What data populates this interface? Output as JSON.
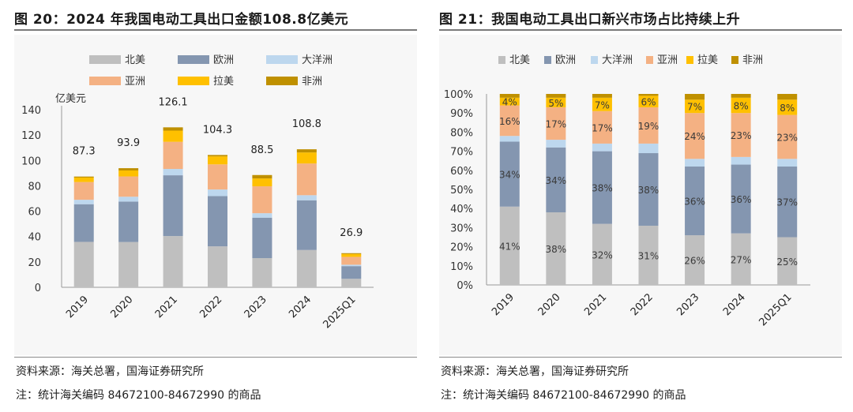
{
  "left": {
    "title": "图 20：2024 年我国电动工具出口金额108.8亿美元",
    "source": "资料来源：海关总署，国海证券研究所",
    "note": "注：统计海关编码 84672100-84672990 的商品"
  },
  "right": {
    "title": "图 21：我国电动工具出口新兴市场占比持续上升",
    "source": "资料来源：海关总署，国海证券研究所",
    "note": "注：统计海关编码 84672100-84672990 的商品"
  },
  "colors": {
    "北美": "#bfbfbf",
    "欧洲": "#8496b0",
    "大洋洲": "#bdd7ee",
    "亚洲": "#f4b183",
    "拉美": "#ffc000",
    "非洲": "#bf9000"
  },
  "chart_data": [
    {
      "type": "bar",
      "stacked": true,
      "ylabel": "亿美元",
      "ylim": [
        0,
        140
      ],
      "yticks": [
        0,
        20,
        40,
        60,
        80,
        100,
        120,
        140
      ],
      "categories": [
        "2019",
        "2020",
        "2021",
        "2022",
        "2023",
        "2024",
        "2025Q1"
      ],
      "totals": [
        87.3,
        93.9,
        126.1,
        104.3,
        88.5,
        108.8,
        26.9
      ],
      "legend": [
        "北美",
        "欧洲",
        "大洋洲",
        "亚洲",
        "拉美",
        "非洲"
      ],
      "legend_position": "top",
      "series": [
        {
          "name": "北美",
          "values": [
            35.8,
            35.7,
            40.4,
            32.3,
            23.0,
            29.4,
            6.7
          ]
        },
        {
          "name": "欧洲",
          "values": [
            29.7,
            31.9,
            47.9,
            39.6,
            31.9,
            39.2,
            10.0
          ]
        },
        {
          "name": "大洋洲",
          "values": [
            3.5,
            3.8,
            5.0,
            5.2,
            3.5,
            4.0,
            1.1
          ]
        },
        {
          "name": "亚洲",
          "values": [
            14.0,
            16.0,
            21.4,
            19.8,
            21.2,
            25.0,
            6.2
          ]
        },
        {
          "name": "拉美",
          "values": [
            3.5,
            4.7,
            8.8,
            6.3,
            6.2,
            8.7,
            2.2
          ]
        },
        {
          "name": "非洲",
          "values": [
            0.8,
            1.8,
            2.6,
            1.1,
            2.7,
            2.5,
            0.7
          ]
        }
      ]
    },
    {
      "type": "bar",
      "stacked": true,
      "percent": true,
      "ylim": [
        0,
        100
      ],
      "yticks": [
        "0%",
        "10%",
        "20%",
        "30%",
        "40%",
        "50%",
        "60%",
        "70%",
        "80%",
        "90%",
        "100%"
      ],
      "categories": [
        "2019",
        "2020",
        "2021",
        "2022",
        "2023",
        "2024",
        "2025Q1"
      ],
      "legend": [
        "北美",
        "欧洲",
        "大洋洲",
        "亚洲",
        "拉美",
        "非洲"
      ],
      "legend_position": "top",
      "series": [
        {
          "name": "北美",
          "values": [
            41,
            38,
            32,
            31,
            26,
            27,
            25
          ],
          "labels": [
            "41%",
            "38%",
            "32%",
            "31%",
            "26%",
            "27%",
            "25%"
          ]
        },
        {
          "name": "欧洲",
          "values": [
            34,
            34,
            38,
            38,
            36,
            36,
            37
          ],
          "labels": [
            "34%",
            "34%",
            "38%",
            "38%",
            "36%",
            "36%",
            "37%"
          ]
        },
        {
          "name": "大洋洲",
          "values": [
            3,
            4,
            4,
            5,
            4,
            4,
            4
          ]
        },
        {
          "name": "亚洲",
          "values": [
            16,
            17,
            17,
            19,
            24,
            23,
            23
          ],
          "labels": [
            "16%",
            "17%",
            "17%",
            "19%",
            "24%",
            "23%",
            "23%"
          ]
        },
        {
          "name": "拉美",
          "values": [
            4,
            5,
            7,
            6,
            7,
            8,
            8
          ],
          "labels": [
            "4%",
            "5%",
            "7%",
            "6%",
            "7%",
            "8%",
            "8%"
          ]
        },
        {
          "name": "非洲",
          "values": [
            2,
            2,
            2,
            1,
            3,
            2,
            3
          ]
        }
      ]
    }
  ]
}
